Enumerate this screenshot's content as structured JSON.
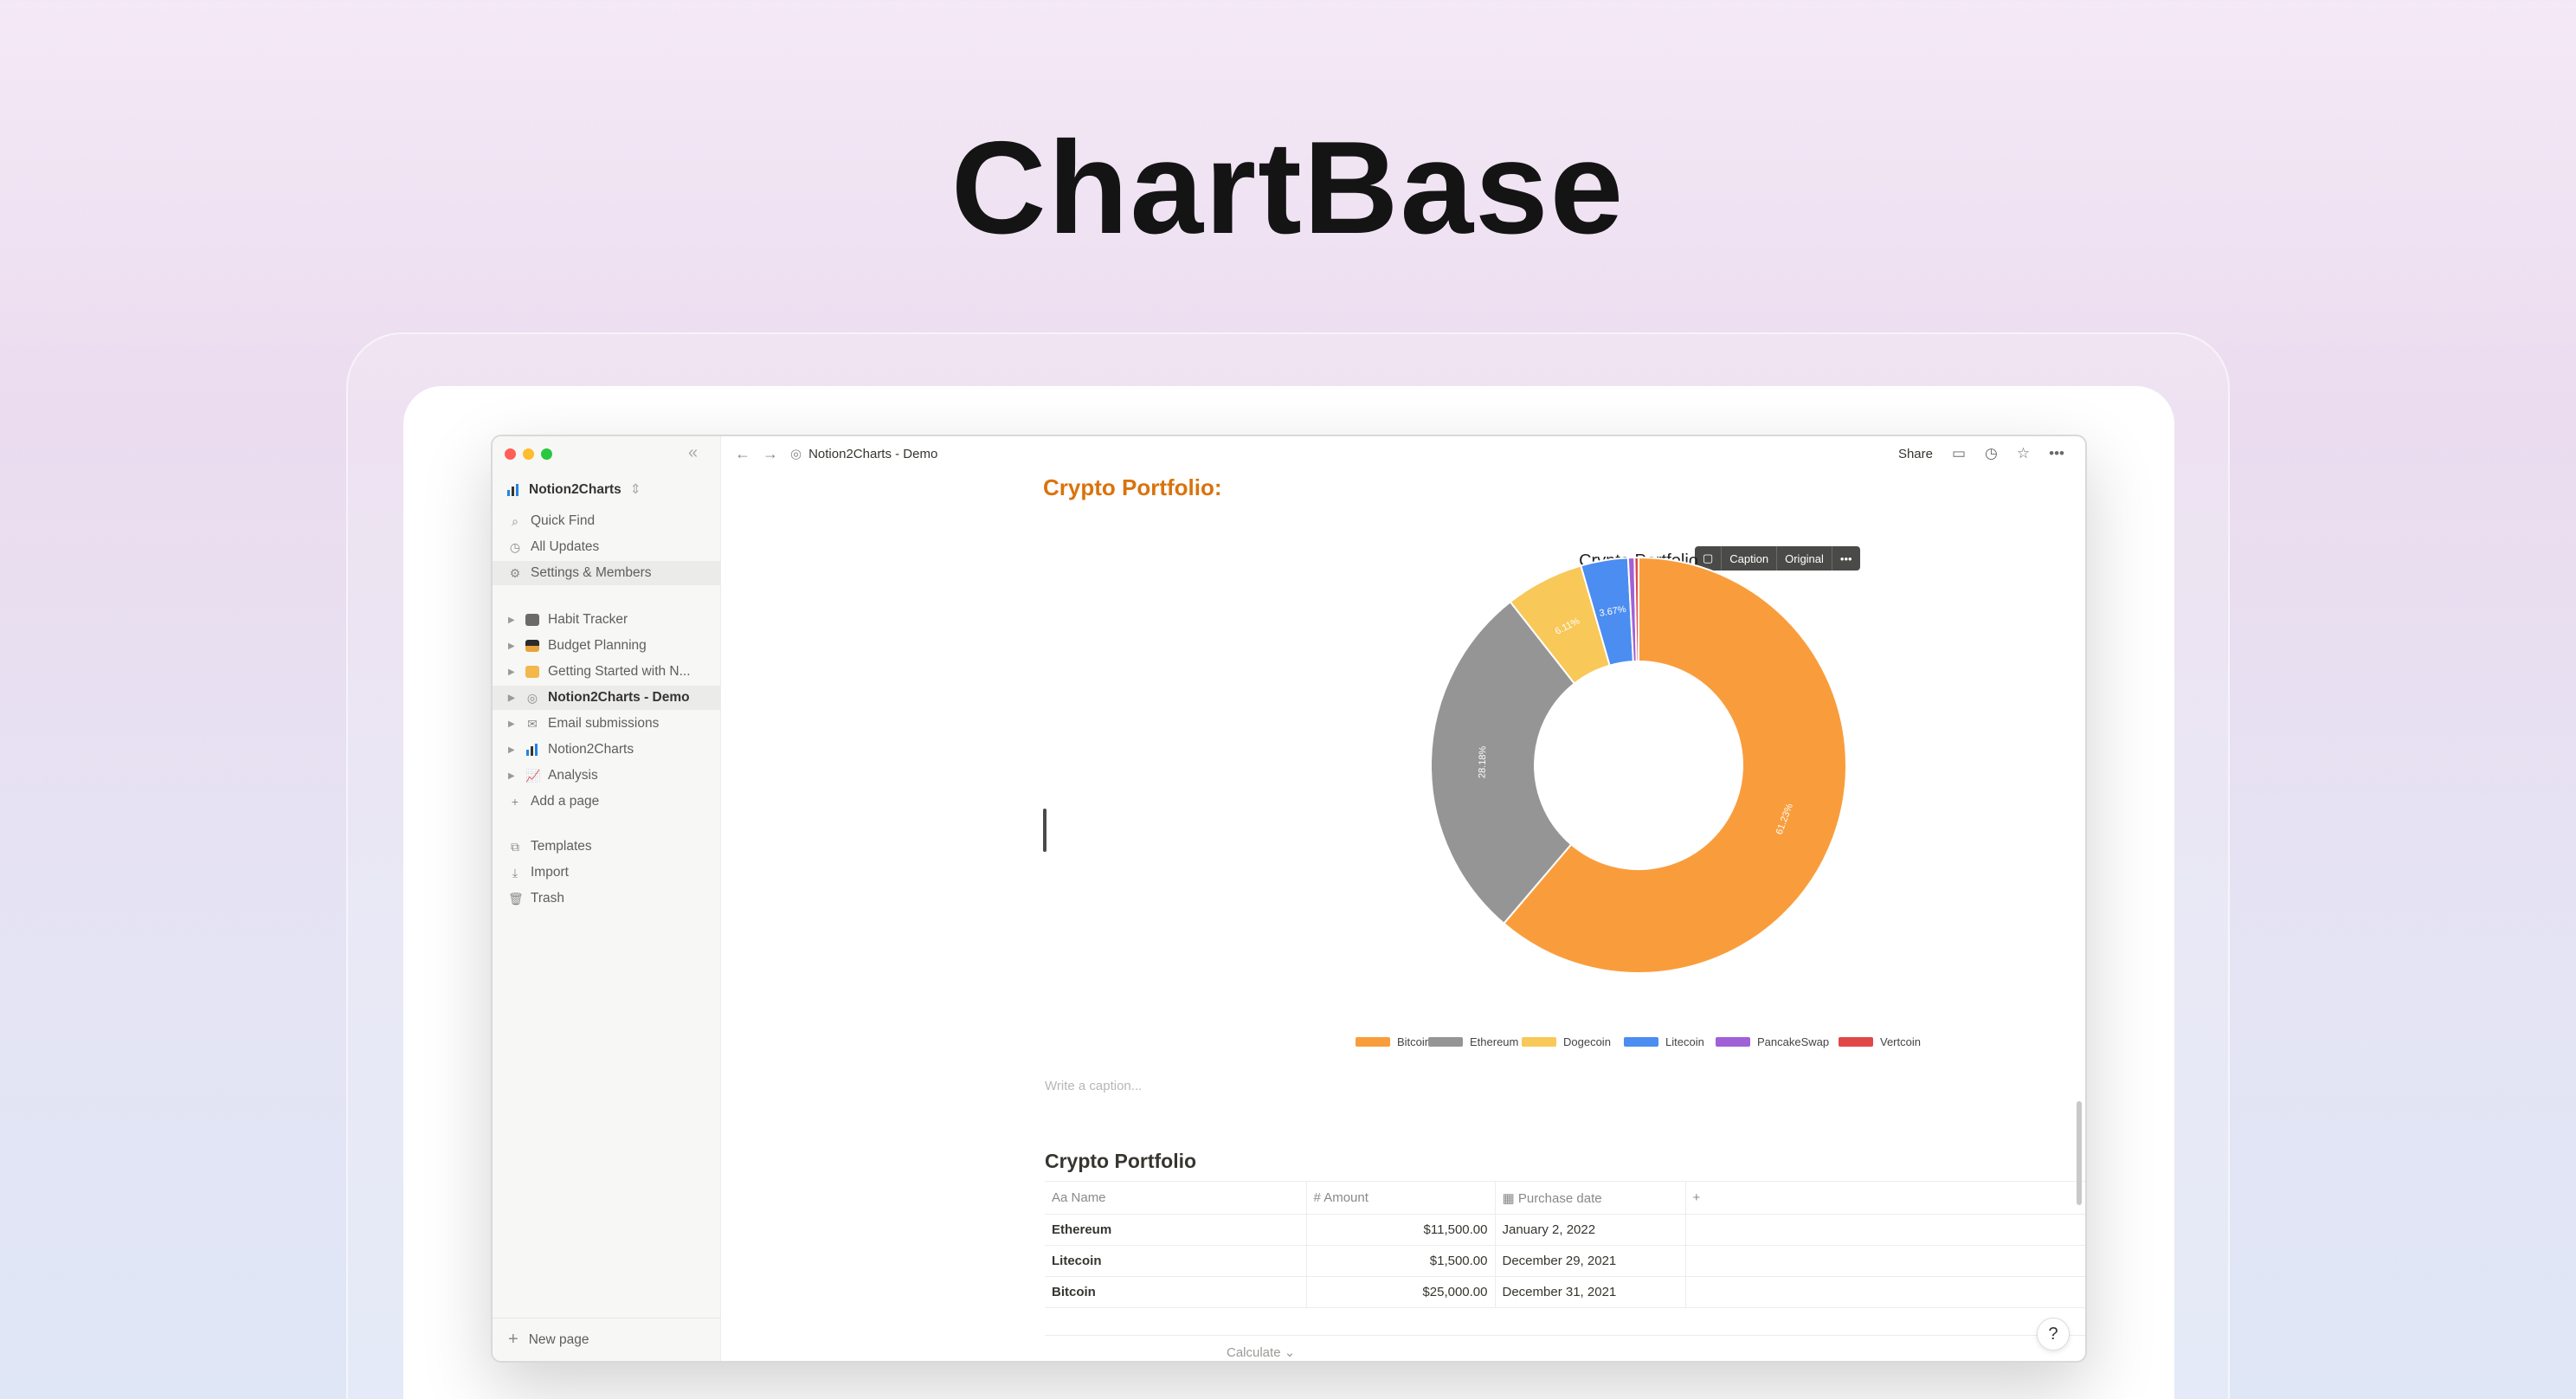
{
  "hero": {
    "title": "ChartBase"
  },
  "window": {
    "breadcrumb": "Notion2Charts - Demo",
    "share_label": "Share",
    "colors": {
      "accent": "#d9730d",
      "sidebar_bg": "#f7f7f5"
    }
  },
  "sidebar": {
    "workspace": "Notion2Charts",
    "top_items": [
      {
        "label": "Quick Find",
        "icon": "search-icon"
      },
      {
        "label": "All Updates",
        "icon": "clock-icon"
      },
      {
        "label": "Settings & Members",
        "icon": "gear-icon"
      }
    ],
    "pages": [
      {
        "label": "Habit Tracker",
        "icon": "calendar-page-icon"
      },
      {
        "label": "Budget Planning",
        "icon": "card-page-icon"
      },
      {
        "label": "Getting Started with N...",
        "icon": "notes-page-icon"
      },
      {
        "label": "Notion2Charts - Demo",
        "icon": "circle-page-icon"
      },
      {
        "label": "Email submissions",
        "icon": "mail-page-icon"
      },
      {
        "label": "Notion2Charts",
        "icon": "chart-page-icon"
      },
      {
        "label": "Analysis",
        "icon": "line-chart-page-icon"
      },
      {
        "label": "Add a page",
        "icon": "plus-icon"
      }
    ],
    "bottom_items": [
      {
        "label": "Templates",
        "icon": "templates-icon"
      },
      {
        "label": "Import",
        "icon": "import-icon"
      },
      {
        "label": "Trash",
        "icon": "trash-icon"
      }
    ],
    "new_page_label": "New page"
  },
  "main": {
    "heading": "Crypto Portfolio:",
    "chart_toolbar": {
      "caption": "Caption",
      "original": "Original",
      "more": "•••"
    },
    "caption_placeholder": "Write a caption...",
    "database": {
      "title": "Crypto Portfolio",
      "columns": [
        "Name",
        "Amount",
        "Purchase date"
      ],
      "rows": [
        {
          "name": "Ethereum",
          "amount": "$11,500.00",
          "date": "January 2, 2022"
        },
        {
          "name": "Litecoin",
          "amount": "$1,500.00",
          "date": "December 29, 2021"
        },
        {
          "name": "Bitcoin",
          "amount": "$25,000.00",
          "date": "December 31, 2021"
        }
      ],
      "calculate_label": "Calculate"
    },
    "help_label": "?"
  },
  "chart_data": {
    "type": "pie",
    "title": "Crypto Portfolio",
    "categories": [
      "Bitcoin",
      "Ethereum",
      "Dogecoin",
      "Litecoin",
      "PancakeSwap",
      "Vertcoin"
    ],
    "values": [
      61.23,
      28.18,
      6.11,
      3.67,
      0.5,
      0.31
    ],
    "labels": [
      "61.23%",
      "28.18%",
      "6.11%",
      "3.67%",
      "",
      ""
    ],
    "colors": [
      "#f99d3c",
      "#959595",
      "#f8c858",
      "#4b8df0",
      "#a060d8",
      "#e04848"
    ],
    "legend": "bottom"
  }
}
